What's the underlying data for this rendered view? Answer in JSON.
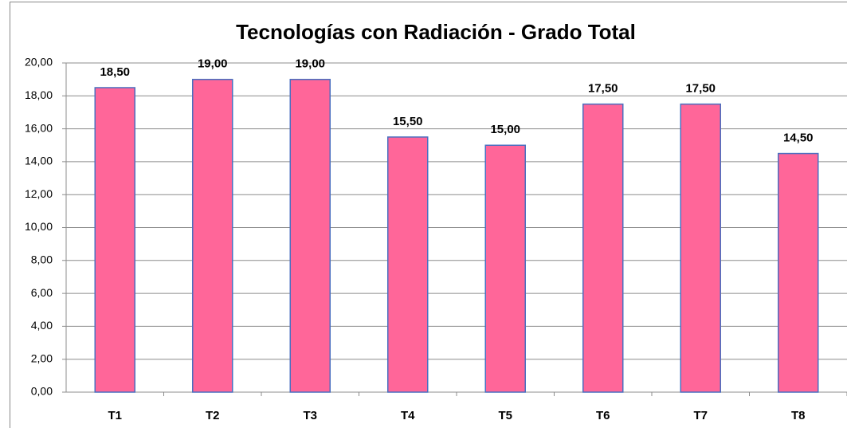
{
  "chart_data": {
    "type": "bar",
    "title": "Tecnologías con Radiación - Grado Total",
    "categories": [
      "T1",
      "T2",
      "T3",
      "T4",
      "T5",
      "T6",
      "T7",
      "T8"
    ],
    "values": [
      18.5,
      19,
      19,
      15.5,
      15,
      17.5,
      17.5,
      14.5
    ],
    "value_labels": [
      "18,50",
      "19,00",
      "19,00",
      "15,50",
      "15,00",
      "17,50",
      "17,50",
      "14,50"
    ],
    "color": "#ff6699",
    "ylim": [
      0,
      20
    ],
    "yticks": [
      {
        "value": 0,
        "label": "0,00"
      },
      {
        "value": 2,
        "label": "2,00"
      },
      {
        "value": 4,
        "label": "4,00"
      },
      {
        "value": 6,
        "label": "6,00"
      },
      {
        "value": 8,
        "label": "8,00"
      },
      {
        "value": 10,
        "label": "10,00"
      },
      {
        "value": 12,
        "label": "12,00"
      },
      {
        "value": 14,
        "label": "14,00"
      },
      {
        "value": 16,
        "label": "16,00"
      },
      {
        "value": 18,
        "label": "18,00"
      },
      {
        "value": 20,
        "label": "20,00"
      }
    ],
    "grid": true
  }
}
